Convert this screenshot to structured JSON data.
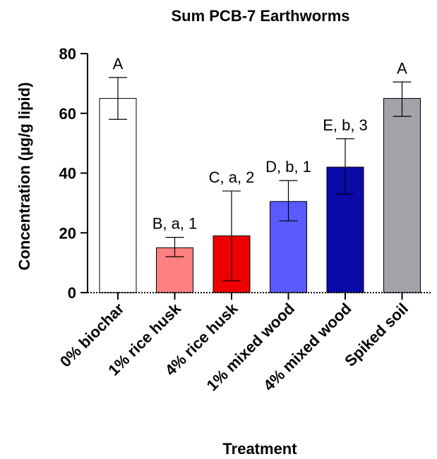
{
  "chart_data": {
    "type": "bar",
    "title": "Sum PCB-7 Earthworms",
    "xlabel": "Treatment",
    "ylabel": "Concentration  (µg/g lipid)",
    "ylim": [
      0,
      80
    ],
    "yticks": [
      "0",
      "20",
      "40",
      "60",
      "80"
    ],
    "categories": [
      "0% biochar",
      "1% rice husk",
      "4% rice husk",
      "1% mixed wood",
      "4% mixed wood",
      "Spiked soil"
    ],
    "values": [
      65,
      15,
      19,
      30.5,
      42,
      65
    ],
    "error_low": [
      58,
      12,
      4,
      24,
      33,
      59
    ],
    "error_high": [
      72,
      18.5,
      34,
      37.5,
      51.5,
      70.5
    ],
    "annotations": [
      "A",
      "B, a, 1",
      "C, a, 2",
      "D, b, 1",
      "E, b, 3",
      "A"
    ],
    "colors": [
      "#ffffff",
      "#ff8080",
      "#ee0000",
      "#5a5aff",
      "#0a0aa8",
      "#a2a2a8"
    ],
    "baseline_style": "dotted",
    "grid": false,
    "legend": "none"
  }
}
